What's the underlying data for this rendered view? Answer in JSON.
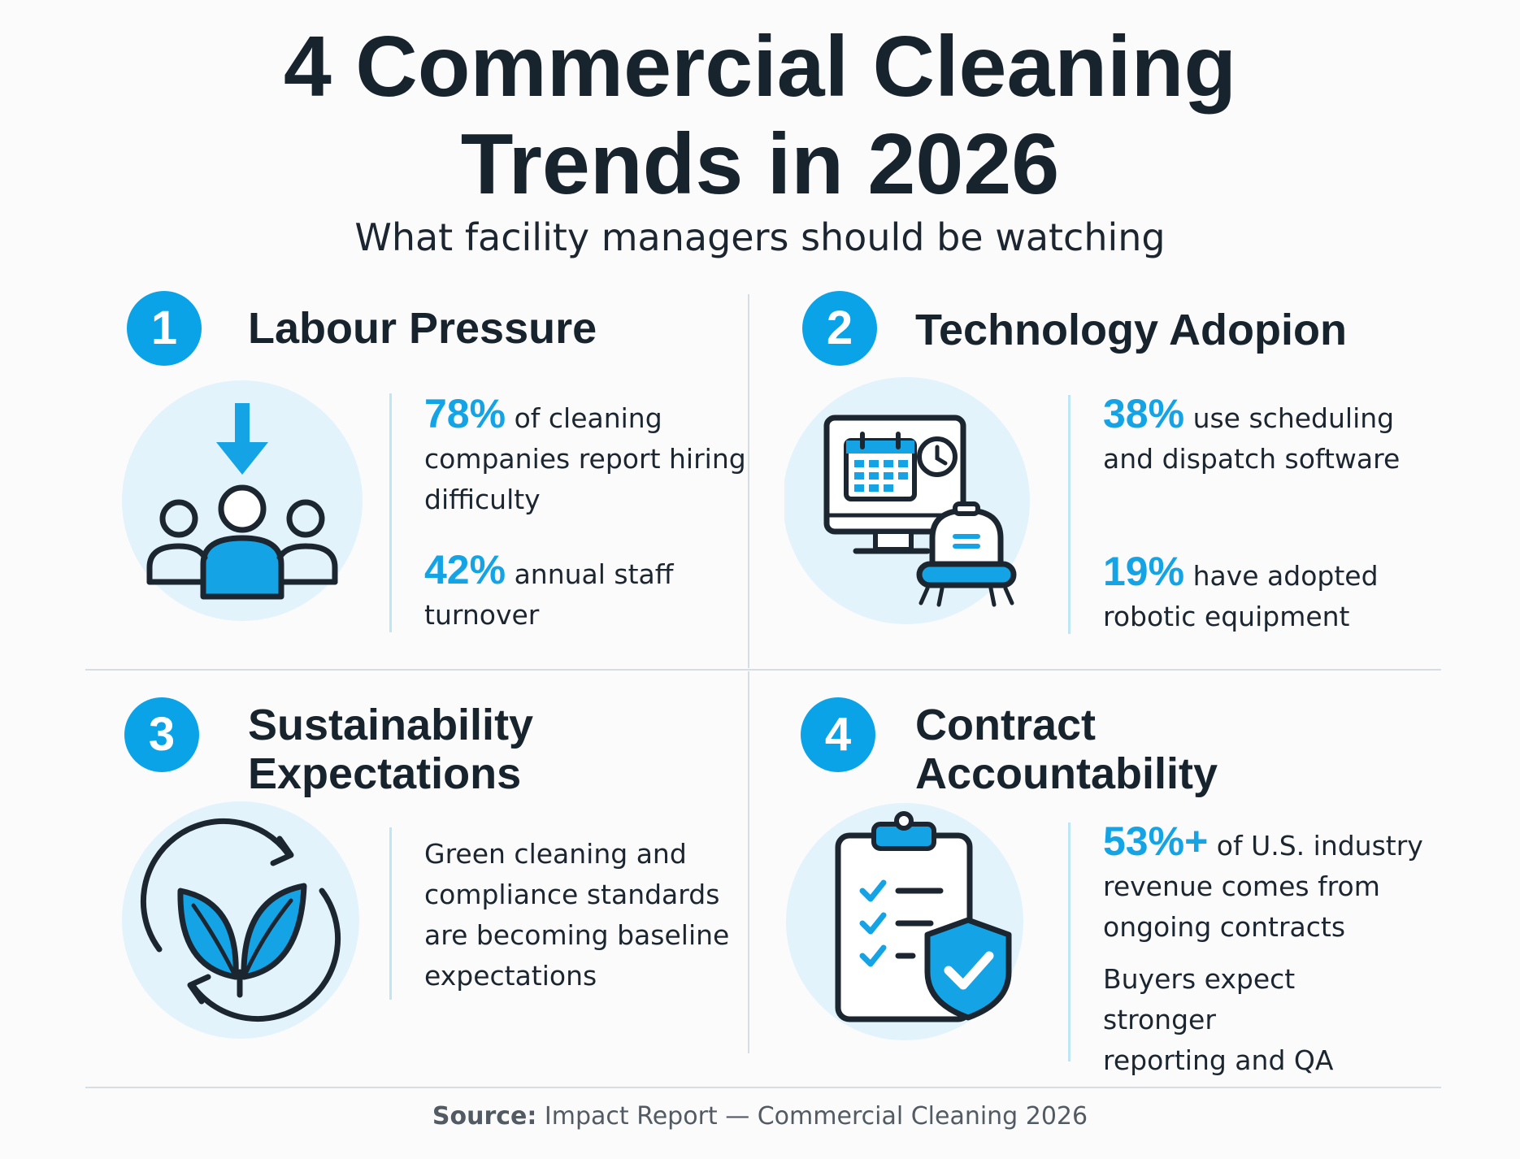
{
  "header": {
    "title_line1": "4 Commercial Cleaning",
    "title_line2": "Trends in 2026",
    "subtitle": "What facility managers should be watching"
  },
  "colors": {
    "accent": "#0aa3e8",
    "stat_blue": "#14a4e6",
    "icon_circle": "#e3f3fc",
    "text": "#17232d",
    "divider": "#d6dde3"
  },
  "trends": [
    {
      "number": "1",
      "title_line1": "Labour Pressure",
      "icon": "workforce-decline-icon",
      "stats": [
        {
          "value": "78%",
          "text": "of cleaning companies report hiring difficulty"
        },
        {
          "value": "42%",
          "text": "annual staff turnover"
        }
      ]
    },
    {
      "number": "2",
      "title_line1": "Technology Adopion",
      "icon": "scheduling-robot-icon",
      "stats": [
        {
          "value": "38%",
          "text": "use scheduling and dispatch software"
        },
        {
          "value": "19%",
          "text": "have adopted robotic equipment"
        }
      ]
    },
    {
      "number": "3",
      "title_line1": "Sustainability",
      "title_line2": "Expectations",
      "icon": "recycle-leaf-icon",
      "paragraph": "Green cleaning and compliance standards are becoming baseline expectations"
    },
    {
      "number": "4",
      "title_line1": "Contract",
      "title_line2": "Accountability",
      "icon": "clipboard-shield-icon",
      "stats": [
        {
          "value": "53%+",
          "text": "of U.S. industry revenue comes from ongoing contracts"
        }
      ],
      "paragraph": "Buyers expect stronger reporting and QA"
    }
  ],
  "footer": {
    "source_label": "Source:",
    "source_text": "Impact Report — Commercial Cleaning 2026"
  }
}
